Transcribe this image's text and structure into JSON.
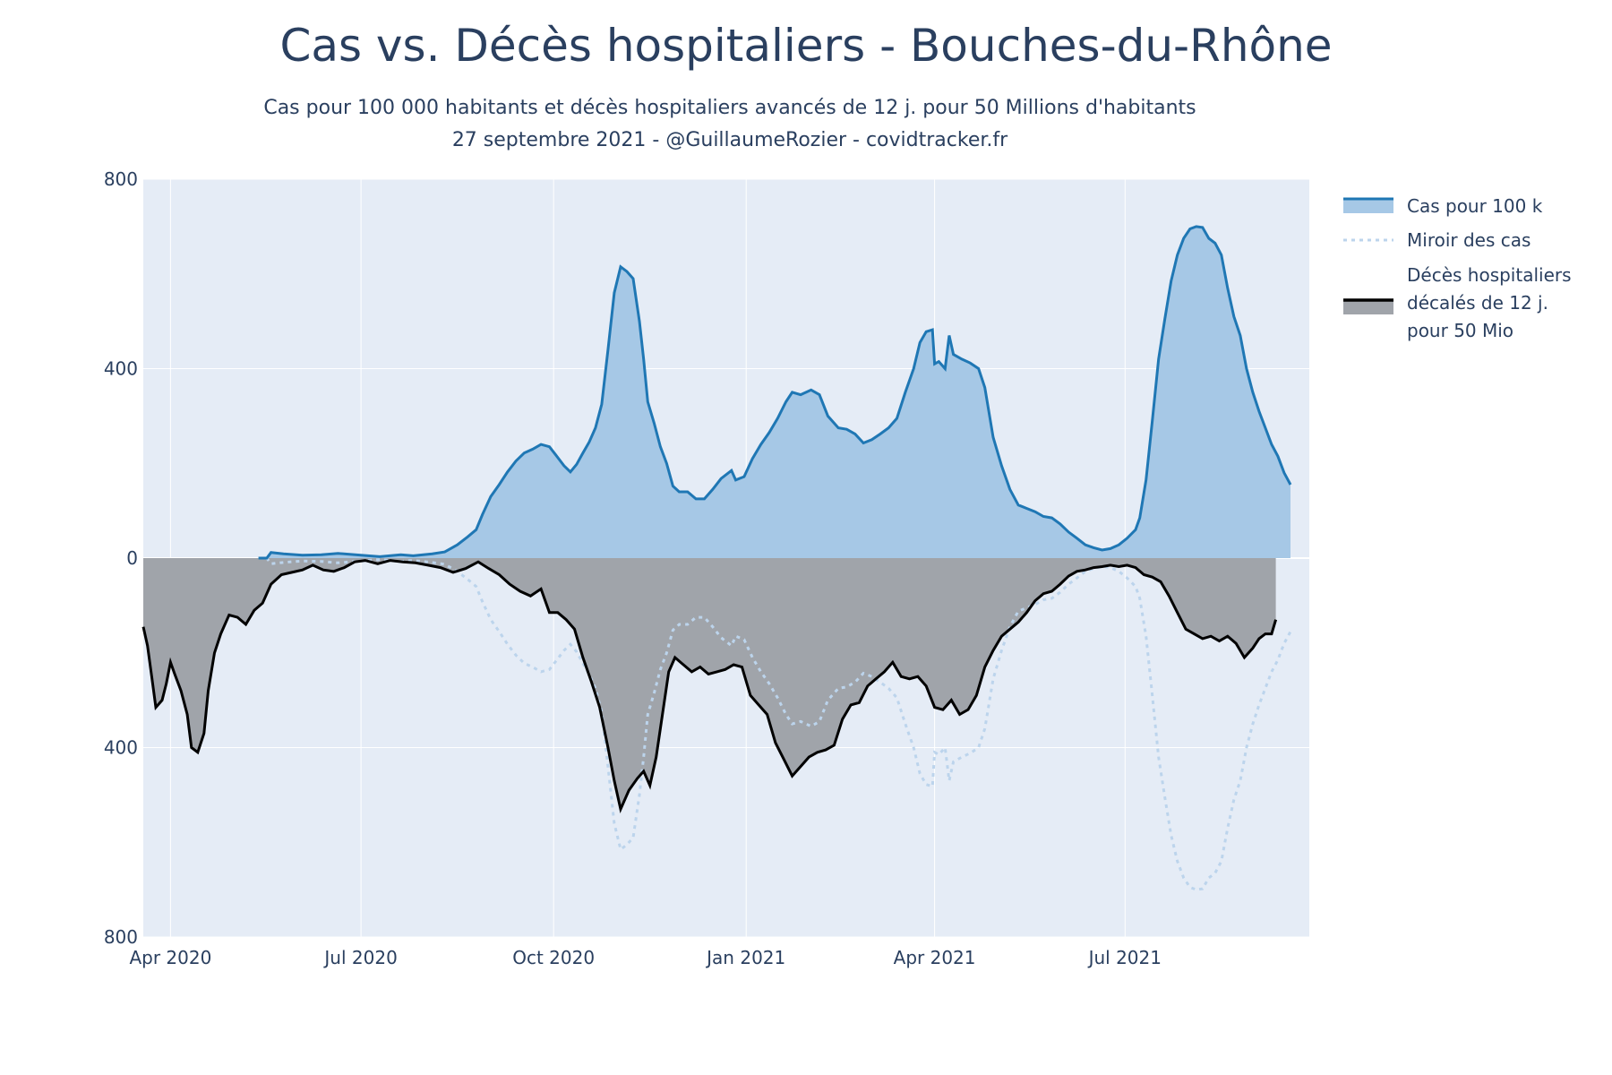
{
  "chart_data": {
    "type": "area",
    "title": "Cas vs. Décès hospitaliers - Bouches-du-Rhône",
    "subtitle_line1": "Cas pour 100 000 habitants et décès hospitaliers avancés de 12 j. pour 50 Millions d'habitants",
    "subtitle_line2": "27 septembre 2021 - @GuillaumeRozier - covidtracker.fr",
    "xlabel": "",
    "ylabel": "",
    "x_range": [
      "2020-03-19",
      "2021-09-27"
    ],
    "y_range": [
      -800,
      800
    ],
    "y_tick_values": [
      800,
      400,
      0,
      -400,
      -800
    ],
    "y_tick_labels": [
      "800",
      "400",
      "0",
      "400",
      "800"
    ],
    "x_tick_values": [
      "2020-04-01",
      "2020-07-01",
      "2020-10-01",
      "2021-01-01",
      "2021-04-01",
      "2021-07-01"
    ],
    "x_tick_labels": [
      "Apr 2020",
      "Jul 2020",
      "Oct 2020",
      "Jan 2021",
      "Apr 2021",
      "Jul 2021"
    ],
    "grid": true,
    "legend_position": "top-right",
    "colors": {
      "plot_bg": "#e5ecf6",
      "grid": "#ffffff",
      "cases_line": "#1f77b4",
      "cases_fill": "#a6c8e6",
      "mirror_line": "#bcd4ec",
      "deaths_line": "#000000",
      "deaths_fill": "#a0a4aa",
      "text": "#2a3f5f"
    },
    "series": [
      {
        "name": "Cas pour 100 k",
        "style": "line-fill-up",
        "points": [
          [
            "2020-05-13",
            0
          ],
          [
            "2020-05-17",
            0
          ],
          [
            "2020-05-19",
            12
          ],
          [
            "2020-05-25",
            9
          ],
          [
            "2020-06-03",
            6
          ],
          [
            "2020-06-12",
            7
          ],
          [
            "2020-06-20",
            10
          ],
          [
            "2020-07-01",
            6
          ],
          [
            "2020-07-10",
            3
          ],
          [
            "2020-07-20",
            7
          ],
          [
            "2020-07-26",
            5
          ],
          [
            "2020-08-04",
            9
          ],
          [
            "2020-08-10",
            13
          ],
          [
            "2020-08-16",
            28
          ],
          [
            "2020-08-21",
            45
          ],
          [
            "2020-08-25",
            60
          ],
          [
            "2020-08-28",
            92
          ],
          [
            "2020-09-01",
            130
          ],
          [
            "2020-09-05",
            155
          ],
          [
            "2020-09-09",
            182
          ],
          [
            "2020-09-13",
            205
          ],
          [
            "2020-09-17",
            222
          ],
          [
            "2020-09-21",
            230
          ],
          [
            "2020-09-25",
            240
          ],
          [
            "2020-09-29",
            235
          ],
          [
            "2020-10-02",
            218
          ],
          [
            "2020-10-06",
            195
          ],
          [
            "2020-10-09",
            182
          ],
          [
            "2020-10-12",
            198
          ],
          [
            "2020-10-15",
            222
          ],
          [
            "2020-10-18",
            245
          ],
          [
            "2020-10-21",
            275
          ],
          [
            "2020-10-24",
            325
          ],
          [
            "2020-10-27",
            440
          ],
          [
            "2020-10-30",
            560
          ],
          [
            "2020-11-02",
            615
          ],
          [
            "2020-11-05",
            605
          ],
          [
            "2020-11-08",
            590
          ],
          [
            "2020-11-11",
            500
          ],
          [
            "2020-11-13",
            420
          ],
          [
            "2020-11-15",
            330
          ],
          [
            "2020-11-18",
            285
          ],
          [
            "2020-11-21",
            235
          ],
          [
            "2020-11-24",
            200
          ],
          [
            "2020-11-27",
            152
          ],
          [
            "2020-11-30",
            140
          ],
          [
            "2020-12-04",
            140
          ],
          [
            "2020-12-08",
            125
          ],
          [
            "2020-12-12",
            125
          ],
          [
            "2020-12-16",
            145
          ],
          [
            "2020-12-20",
            168
          ],
          [
            "2020-12-25",
            185
          ],
          [
            "2020-12-27",
            165
          ],
          [
            "2020-12-31",
            172
          ],
          [
            "2021-01-04",
            210
          ],
          [
            "2021-01-08",
            240
          ],
          [
            "2021-01-12",
            265
          ],
          [
            "2021-01-16",
            295
          ],
          [
            "2021-01-20",
            330
          ],
          [
            "2021-01-23",
            350
          ],
          [
            "2021-01-27",
            345
          ],
          [
            "2021-02-01",
            355
          ],
          [
            "2021-02-05",
            345
          ],
          [
            "2021-02-09",
            300
          ],
          [
            "2021-02-14",
            275
          ],
          [
            "2021-02-18",
            272
          ],
          [
            "2021-02-22",
            262
          ],
          [
            "2021-02-26",
            243
          ],
          [
            "2021-03-02",
            250
          ],
          [
            "2021-03-06",
            262
          ],
          [
            "2021-03-10",
            275
          ],
          [
            "2021-03-14",
            295
          ],
          [
            "2021-03-18",
            350
          ],
          [
            "2021-03-22",
            400
          ],
          [
            "2021-03-25",
            455
          ],
          [
            "2021-03-28",
            478
          ],
          [
            "2021-03-31",
            482
          ],
          [
            "2021-04-01",
            410
          ],
          [
            "2021-04-03",
            415
          ],
          [
            "2021-04-06",
            400
          ],
          [
            "2021-04-08",
            470
          ],
          [
            "2021-04-10",
            430
          ],
          [
            "2021-04-14",
            420
          ],
          [
            "2021-04-18",
            412
          ],
          [
            "2021-04-22",
            400
          ],
          [
            "2021-04-25",
            360
          ],
          [
            "2021-04-29",
            255
          ],
          [
            "2021-05-03",
            195
          ],
          [
            "2021-05-07",
            145
          ],
          [
            "2021-05-11",
            112
          ],
          [
            "2021-05-15",
            105
          ],
          [
            "2021-05-19",
            98
          ],
          [
            "2021-05-23",
            88
          ],
          [
            "2021-05-27",
            85
          ],
          [
            "2021-05-31",
            72
          ],
          [
            "2021-06-04",
            55
          ],
          [
            "2021-06-08",
            42
          ],
          [
            "2021-06-12",
            28
          ],
          [
            "2021-06-16",
            22
          ],
          [
            "2021-06-20",
            17
          ],
          [
            "2021-06-24",
            20
          ],
          [
            "2021-06-28",
            28
          ],
          [
            "2021-07-02",
            42
          ],
          [
            "2021-07-06",
            60
          ],
          [
            "2021-07-08",
            85
          ],
          [
            "2021-07-11",
            165
          ],
          [
            "2021-07-14",
            290
          ],
          [
            "2021-07-17",
            420
          ],
          [
            "2021-07-20",
            505
          ],
          [
            "2021-07-23",
            585
          ],
          [
            "2021-07-26",
            640
          ],
          [
            "2021-07-29",
            675
          ],
          [
            "2021-08-01",
            695
          ],
          [
            "2021-08-04",
            700
          ],
          [
            "2021-08-07",
            698
          ],
          [
            "2021-08-10",
            675
          ],
          [
            "2021-08-13",
            665
          ],
          [
            "2021-08-16",
            640
          ],
          [
            "2021-08-19",
            570
          ],
          [
            "2021-08-22",
            510
          ],
          [
            "2021-08-25",
            470
          ],
          [
            "2021-08-28",
            400
          ],
          [
            "2021-08-31",
            350
          ],
          [
            "2021-09-03",
            310
          ],
          [
            "2021-09-06",
            275
          ],
          [
            "2021-09-09",
            240
          ],
          [
            "2021-09-12",
            215
          ],
          [
            "2021-09-15",
            180
          ],
          [
            "2021-09-18",
            155
          ]
        ]
      },
      {
        "name": "Miroir des cas",
        "style": "dotted-line-mirror"
      },
      {
        "name_line1": "Décès hospitaliers",
        "name_line2": "décalés de 12 j.",
        "name_line3": "pour 50 Mio",
        "style": "line-fill-down",
        "points": [
          [
            "2020-03-19",
            -145
          ],
          [
            "2020-03-21",
            -185
          ],
          [
            "2020-03-23",
            -250
          ],
          [
            "2020-03-25",
            -315
          ],
          [
            "2020-03-28",
            -300
          ],
          [
            "2020-03-30",
            -265
          ],
          [
            "2020-04-01",
            -220
          ],
          [
            "2020-04-03",
            -245
          ],
          [
            "2020-04-06",
            -280
          ],
          [
            "2020-04-09",
            -330
          ],
          [
            "2020-04-11",
            -400
          ],
          [
            "2020-04-14",
            -410
          ],
          [
            "2020-04-17",
            -370
          ],
          [
            "2020-04-19",
            -280
          ],
          [
            "2020-04-22",
            -200
          ],
          [
            "2020-04-25",
            -160
          ],
          [
            "2020-04-29",
            -120
          ],
          [
            "2020-05-03",
            -125
          ],
          [
            "2020-05-07",
            -140
          ],
          [
            "2020-05-11",
            -110
          ],
          [
            "2020-05-15",
            -95
          ],
          [
            "2020-05-19",
            -55
          ],
          [
            "2020-05-24",
            -35
          ],
          [
            "2020-05-29",
            -30
          ],
          [
            "2020-06-03",
            -25
          ],
          [
            "2020-06-08",
            -15
          ],
          [
            "2020-06-13",
            -25
          ],
          [
            "2020-06-18",
            -28
          ],
          [
            "2020-06-23",
            -20
          ],
          [
            "2020-06-28",
            -8
          ],
          [
            "2020-07-03",
            -5
          ],
          [
            "2020-07-09",
            -12
          ],
          [
            "2020-07-15",
            -5
          ],
          [
            "2020-07-21",
            -8
          ],
          [
            "2020-07-27",
            -10
          ],
          [
            "2020-08-02",
            -15
          ],
          [
            "2020-08-08",
            -20
          ],
          [
            "2020-08-14",
            -30
          ],
          [
            "2020-08-20",
            -22
          ],
          [
            "2020-08-26",
            -8
          ],
          [
            "2020-08-31",
            -22
          ],
          [
            "2020-09-05",
            -35
          ],
          [
            "2020-09-10",
            -55
          ],
          [
            "2020-09-15",
            -70
          ],
          [
            "2020-09-20",
            -80
          ],
          [
            "2020-09-25",
            -65
          ],
          [
            "2020-09-29",
            -115
          ],
          [
            "2020-10-03",
            -115
          ],
          [
            "2020-10-07",
            -130
          ],
          [
            "2020-10-11",
            -150
          ],
          [
            "2020-10-15",
            -210
          ],
          [
            "2020-10-19",
            -260
          ],
          [
            "2020-10-23",
            -315
          ],
          [
            "2020-10-27",
            -400
          ],
          [
            "2020-10-30",
            -470
          ],
          [
            "2020-11-02",
            -530
          ],
          [
            "2020-11-06",
            -490
          ],
          [
            "2020-11-10",
            -465
          ],
          [
            "2020-11-13",
            -450
          ],
          [
            "2020-11-16",
            -480
          ],
          [
            "2020-11-19",
            -420
          ],
          [
            "2020-11-22",
            -330
          ],
          [
            "2020-11-25",
            -240
          ],
          [
            "2020-11-28",
            -210
          ],
          [
            "2020-12-02",
            -225
          ],
          [
            "2020-12-06",
            -240
          ],
          [
            "2020-12-10",
            -230
          ],
          [
            "2020-12-14",
            -245
          ],
          [
            "2020-12-18",
            -240
          ],
          [
            "2020-12-22",
            -235
          ],
          [
            "2020-12-26",
            -225
          ],
          [
            "2020-12-30",
            -230
          ],
          [
            "2021-01-03",
            -290
          ],
          [
            "2021-01-07",
            -310
          ],
          [
            "2021-01-11",
            -330
          ],
          [
            "2021-01-15",
            -390
          ],
          [
            "2021-01-19",
            -425
          ],
          [
            "2021-01-23",
            -460
          ],
          [
            "2021-01-27",
            -440
          ],
          [
            "2021-01-31",
            -420
          ],
          [
            "2021-02-04",
            -410
          ],
          [
            "2021-02-08",
            -405
          ],
          [
            "2021-02-12",
            -395
          ],
          [
            "2021-02-16",
            -340
          ],
          [
            "2021-02-20",
            -310
          ],
          [
            "2021-02-24",
            -305
          ],
          [
            "2021-02-28",
            -270
          ],
          [
            "2021-03-04",
            -255
          ],
          [
            "2021-03-08",
            -240
          ],
          [
            "2021-03-12",
            -220
          ],
          [
            "2021-03-16",
            -250
          ],
          [
            "2021-03-20",
            -255
          ],
          [
            "2021-03-24",
            -250
          ],
          [
            "2021-03-28",
            -270
          ],
          [
            "2021-04-01",
            -315
          ],
          [
            "2021-04-05",
            -320
          ],
          [
            "2021-04-09",
            -300
          ],
          [
            "2021-04-13",
            -330
          ],
          [
            "2021-04-17",
            -320
          ],
          [
            "2021-04-21",
            -290
          ],
          [
            "2021-04-25",
            -230
          ],
          [
            "2021-04-29",
            -195
          ],
          [
            "2021-05-03",
            -165
          ],
          [
            "2021-05-07",
            -150
          ],
          [
            "2021-05-11",
            -135
          ],
          [
            "2021-05-15",
            -115
          ],
          [
            "2021-05-19",
            -90
          ],
          [
            "2021-05-23",
            -75
          ],
          [
            "2021-05-27",
            -70
          ],
          [
            "2021-05-31",
            -55
          ],
          [
            "2021-06-04",
            -38
          ],
          [
            "2021-06-08",
            -28
          ],
          [
            "2021-06-12",
            -25
          ],
          [
            "2021-06-16",
            -20
          ],
          [
            "2021-06-20",
            -18
          ],
          [
            "2021-06-24",
            -15
          ],
          [
            "2021-06-28",
            -18
          ],
          [
            "2021-07-02",
            -15
          ],
          [
            "2021-07-06",
            -20
          ],
          [
            "2021-07-10",
            -35
          ],
          [
            "2021-07-14",
            -40
          ],
          [
            "2021-07-18",
            -50
          ],
          [
            "2021-07-22",
            -80
          ],
          [
            "2021-07-26",
            -115
          ],
          [
            "2021-07-30",
            -150
          ],
          [
            "2021-08-03",
            -160
          ],
          [
            "2021-08-07",
            -170
          ],
          [
            "2021-08-11",
            -165
          ],
          [
            "2021-08-15",
            -175
          ],
          [
            "2021-08-19",
            -165
          ],
          [
            "2021-08-23",
            -180
          ],
          [
            "2021-08-27",
            -210
          ],
          [
            "2021-08-31",
            -190
          ],
          [
            "2021-09-03",
            -170
          ],
          [
            "2021-09-06",
            -160
          ],
          [
            "2021-09-09",
            -160
          ],
          [
            "2021-09-11",
            -130
          ]
        ]
      }
    ]
  }
}
